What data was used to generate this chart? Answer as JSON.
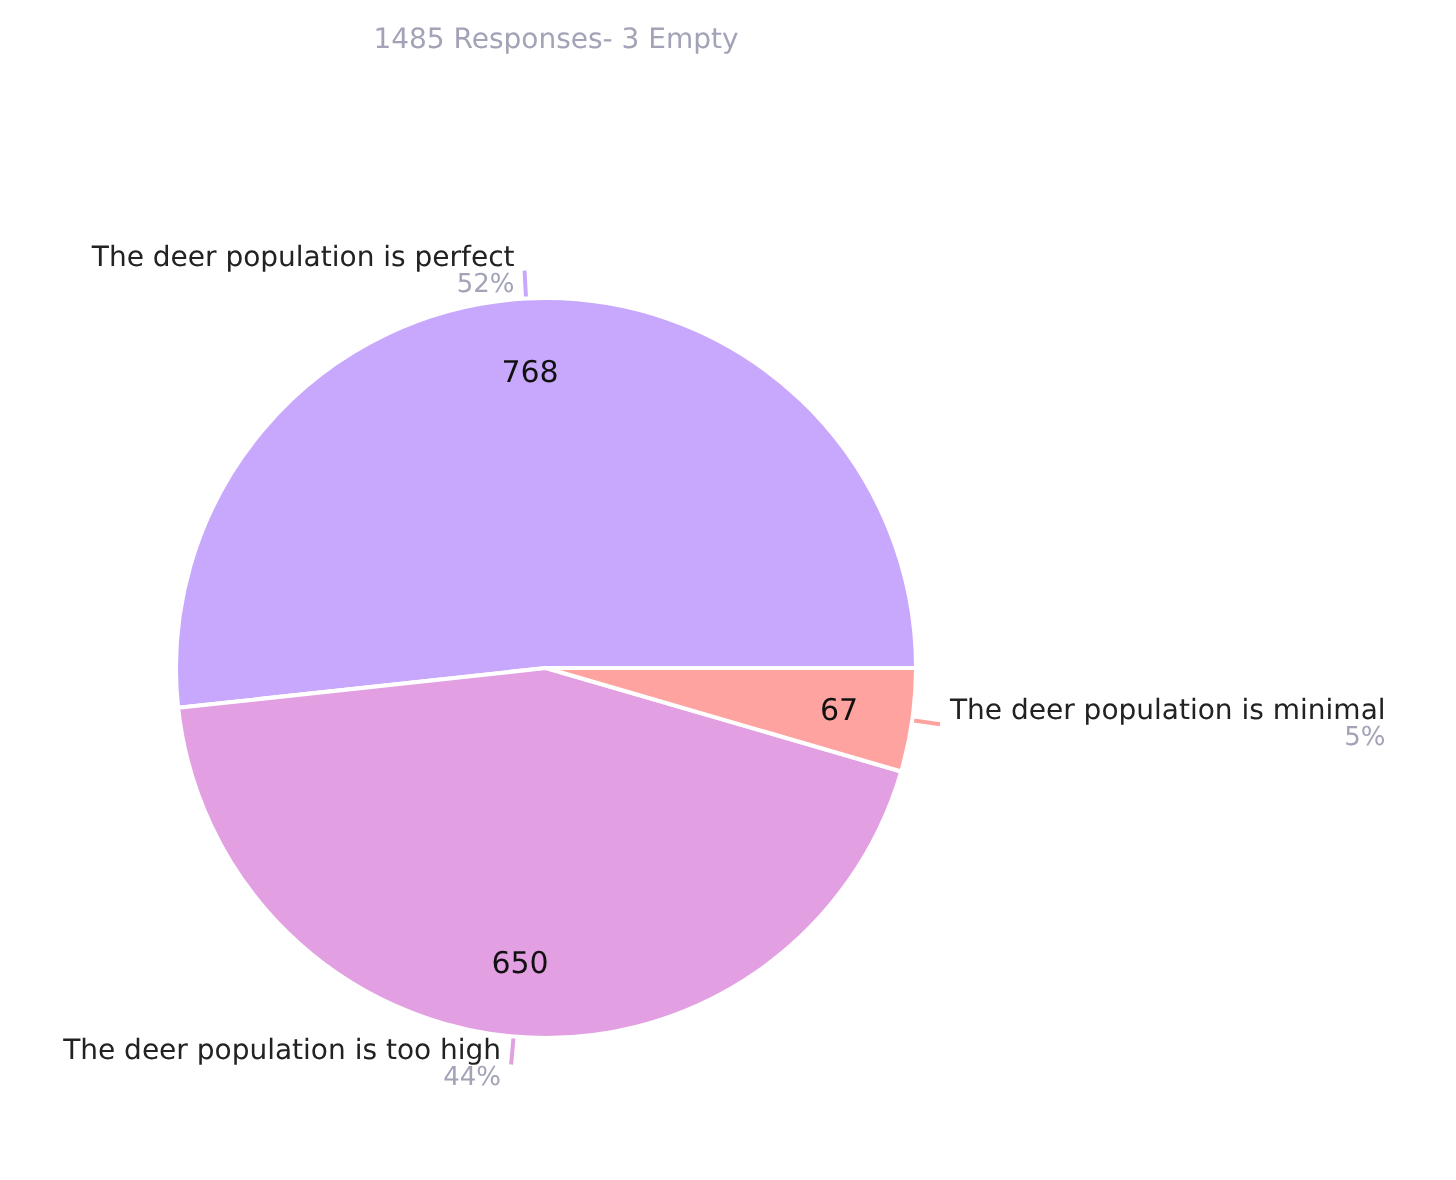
{
  "chart_data": {
    "type": "pie",
    "title": "1485 Responses- 3 Empty",
    "categories": [
      "The deer population is perfect",
      "The deer population is too high",
      "The deer population is minimal"
    ],
    "values": [
      768,
      650,
      67
    ],
    "colors": [
      "#c8a8fc",
      "#e2a0e2",
      "#fea3a0"
    ],
    "data_labels": true,
    "annotations": [
      {
        "text": "52%",
        "x": "The deer population is perfect"
      },
      {
        "text": "44%",
        "x": "The deer population is too high"
      },
      {
        "text": "5%",
        "x": "The deer population is minimal"
      }
    ],
    "legend": false
  }
}
